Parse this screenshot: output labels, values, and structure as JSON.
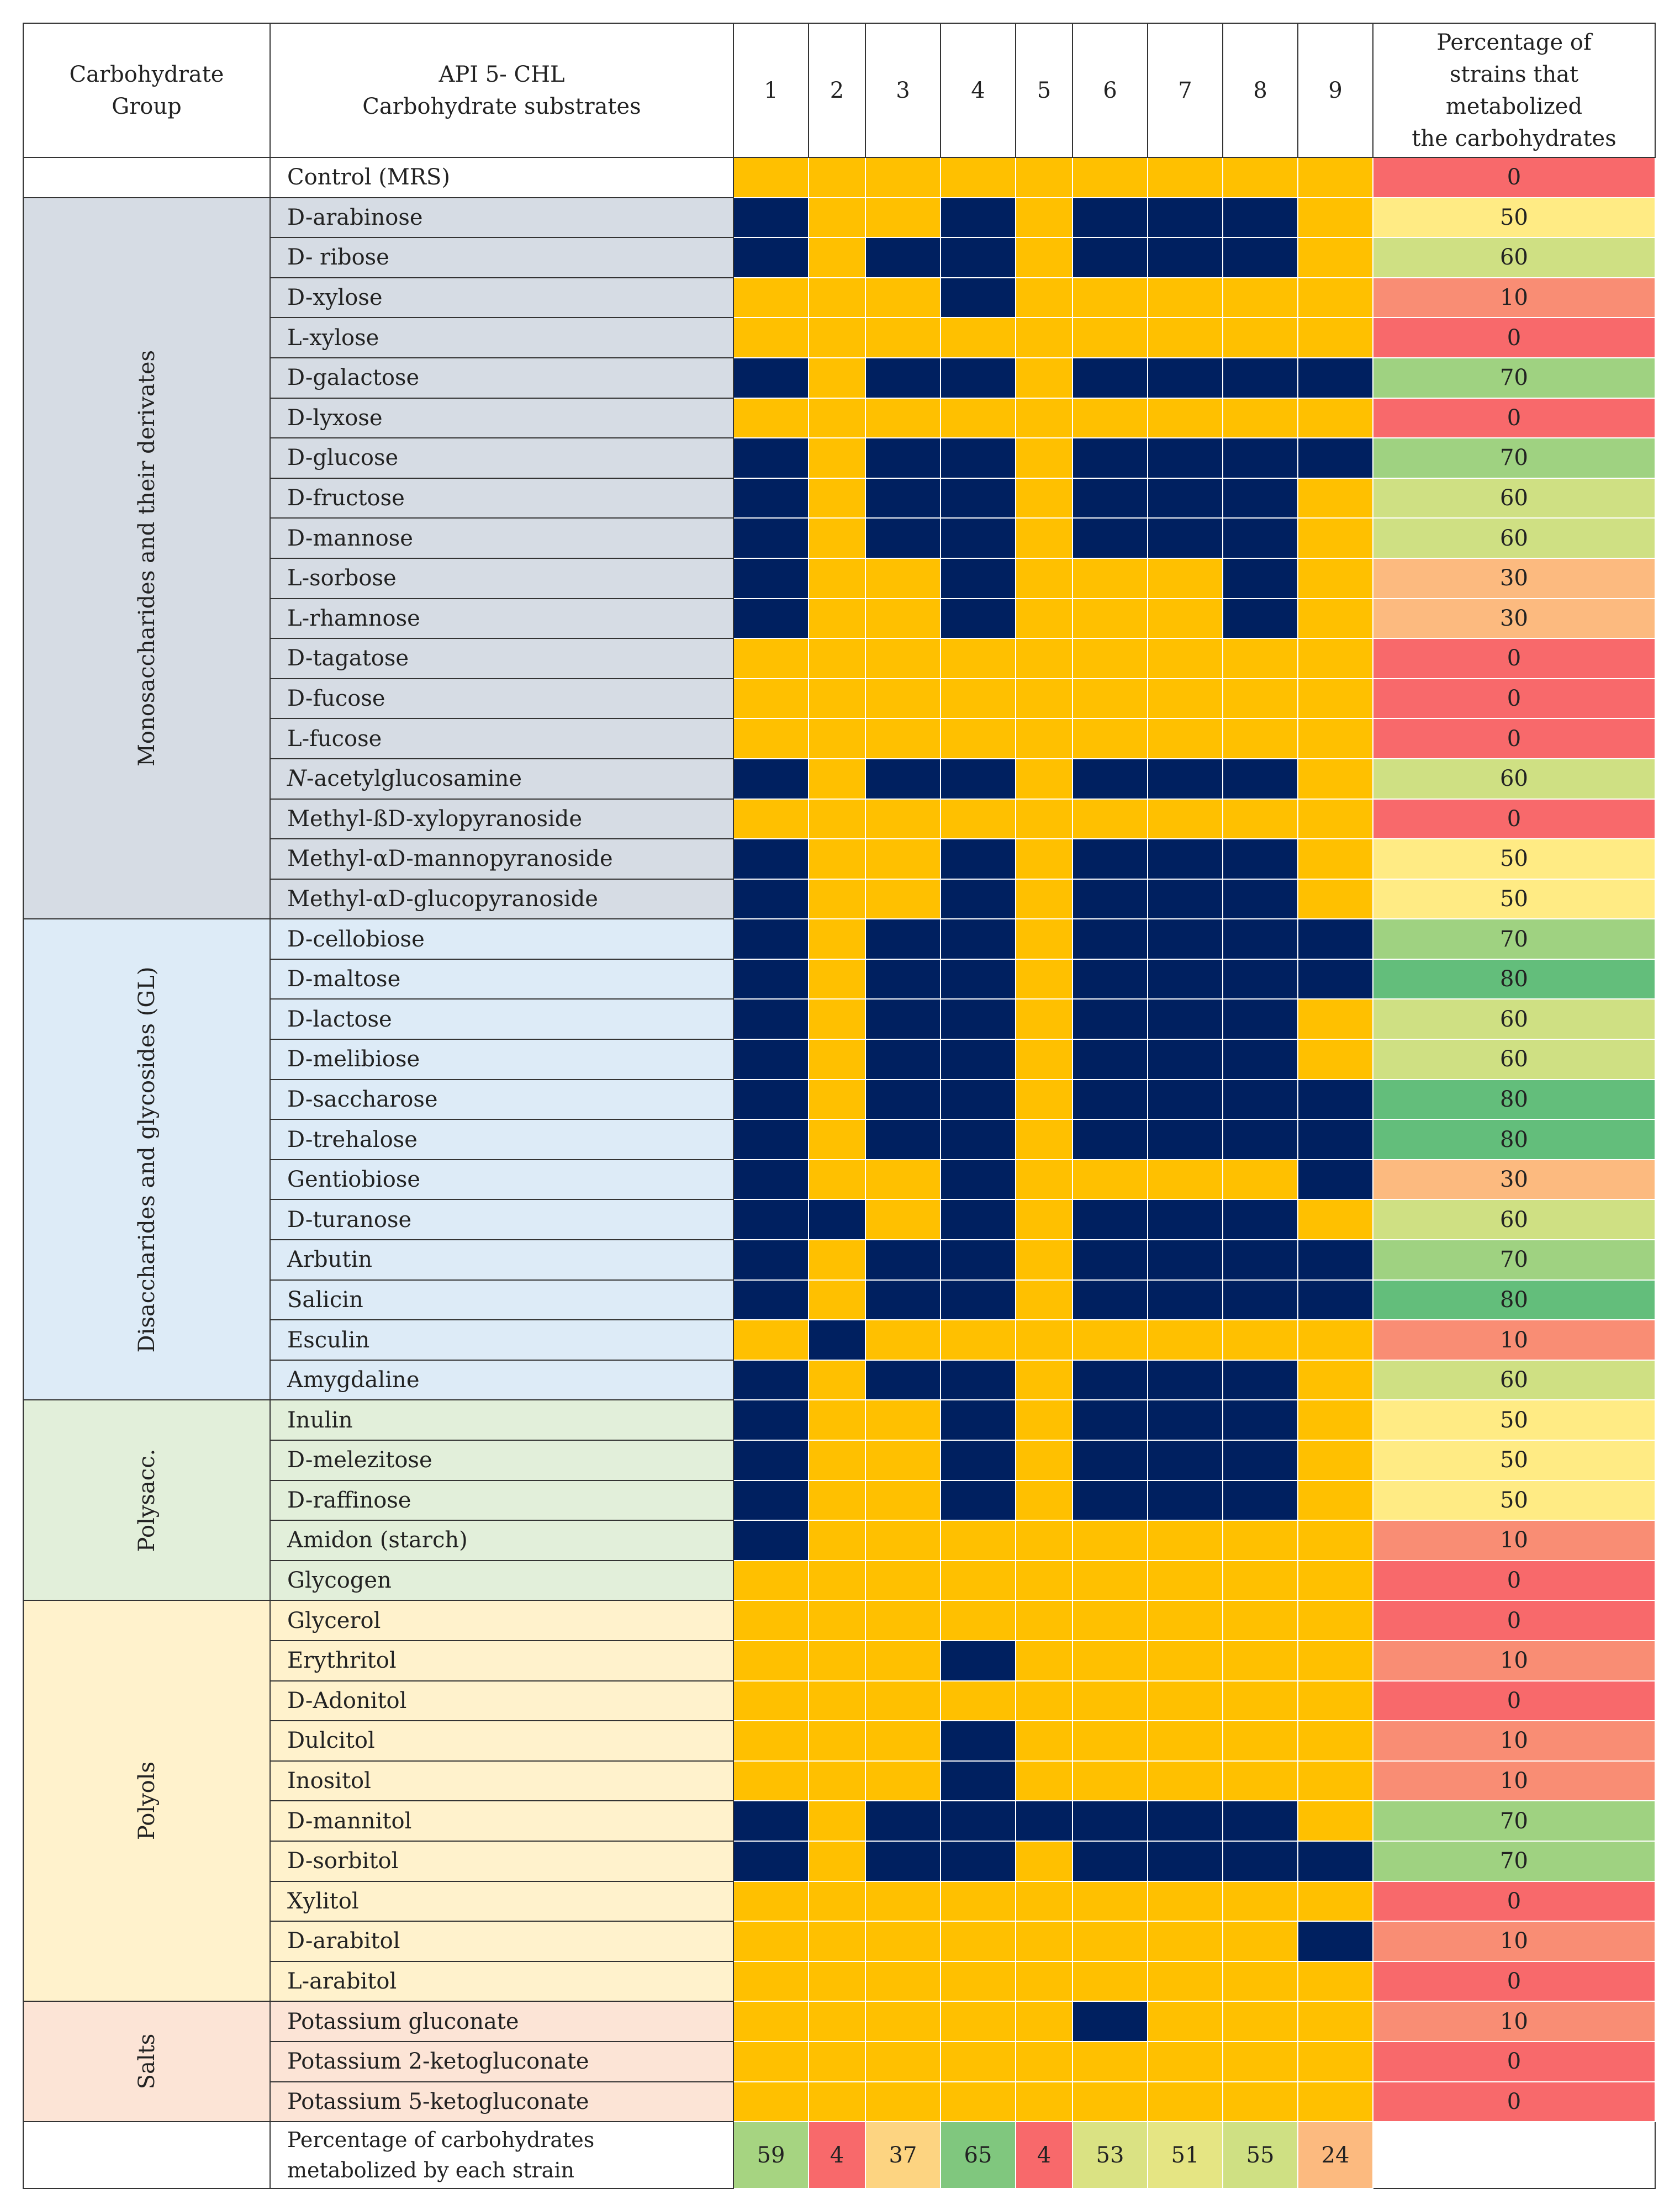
{
  "header": {
    "group_label": "Carbohydrate\nGroup",
    "substrate_label": "API 5- CHL\nCarbohydrate substrates",
    "strains": [
      "1",
      "2",
      "3",
      "4",
      "5",
      "6",
      "7",
      "8",
      "9"
    ],
    "percentage_label": "Percentage of\nstrains that\nmetabolized\nthe carbohydrates"
  },
  "colors": {
    "positive": "#002060",
    "negative": "#FFC000",
    "pct_scale": {
      "0": "#F8696B",
      "10": "#F98D74",
      "30": "#FCBA7F",
      "50": "#FFEB84",
      "60": "#CFE083",
      "70": "#9FD281",
      "80": "#63BE7B",
      "4": "#F8696B",
      "24": "#FCBA7F",
      "37": "#FDD481",
      "51": "#E5E583",
      "53": "#DAE283",
      "55": "#CFE083",
      "59": "#A6D481",
      "65": "#80C77E"
    }
  },
  "groups": [
    {
      "name": "",
      "bg": "#FFFFFF",
      "span": 1
    },
    {
      "name": "Monosaccharides and their derivates",
      "bg": "#D6DCE4",
      "span": 18
    },
    {
      "name": "Disaccharides and glycosides (GL)",
      "bg": "#DDEBF7",
      "span": 12
    },
    {
      "name": "Polysacc.",
      "bg": "#E2EFDA",
      "span": 5
    },
    {
      "name": "Polyols",
      "bg": "#FFF2CC",
      "span": 10
    },
    {
      "name": "Salts",
      "bg": "#FCE4D6",
      "span": 3
    }
  ],
  "rows": [
    {
      "name": "Control (MRS)",
      "strains": [
        0,
        0,
        0,
        0,
        0,
        0,
        0,
        0,
        0
      ],
      "pct": 0
    },
    {
      "name": "D-arabinose",
      "strains": [
        1,
        0,
        0,
        1,
        0,
        1,
        1,
        1,
        0
      ],
      "pct": 50
    },
    {
      "name": "D- ribose",
      "strains": [
        1,
        0,
        1,
        1,
        0,
        1,
        1,
        1,
        0
      ],
      "pct": 60
    },
    {
      "name": "D-xylose",
      "strains": [
        0,
        0,
        0,
        1,
        0,
        0,
        0,
        0,
        0
      ],
      "pct": 10
    },
    {
      "name": "L-xylose",
      "strains": [
        0,
        0,
        0,
        0,
        0,
        0,
        0,
        0,
        0
      ],
      "pct": 0
    },
    {
      "name": "D-galactose",
      "strains": [
        1,
        0,
        1,
        1,
        0,
        1,
        1,
        1,
        1
      ],
      "pct": 70
    },
    {
      "name": "D-lyxose",
      "strains": [
        0,
        0,
        0,
        0,
        0,
        0,
        0,
        0,
        0
      ],
      "pct": 0
    },
    {
      "name": "D-glucose",
      "strains": [
        1,
        0,
        1,
        1,
        0,
        1,
        1,
        1,
        1
      ],
      "pct": 70
    },
    {
      "name": "D-fructose",
      "strains": [
        1,
        0,
        1,
        1,
        0,
        1,
        1,
        1,
        0
      ],
      "pct": 60
    },
    {
      "name": "D-mannose",
      "strains": [
        1,
        0,
        1,
        1,
        0,
        1,
        1,
        1,
        0
      ],
      "pct": 60
    },
    {
      "name": "L-sorbose",
      "strains": [
        1,
        0,
        0,
        1,
        0,
        0,
        0,
        1,
        0
      ],
      "pct": 30
    },
    {
      "name": "L-rhamnose",
      "strains": [
        1,
        0,
        0,
        1,
        0,
        0,
        0,
        1,
        0
      ],
      "pct": 30
    },
    {
      "name": "D-tagatose",
      "strains": [
        0,
        0,
        0,
        0,
        0,
        0,
        0,
        0,
        0
      ],
      "pct": 0
    },
    {
      "name": "D-fucose",
      "strains": [
        0,
        0,
        0,
        0,
        0,
        0,
        0,
        0,
        0
      ],
      "pct": 0
    },
    {
      "name": "L-fucose",
      "strains": [
        0,
        0,
        0,
        0,
        0,
        0,
        0,
        0,
        0
      ],
      "pct": 0
    },
    {
      "name": "N-acetylglucosamine",
      "strains": [
        1,
        0,
        1,
        1,
        0,
        1,
        1,
        1,
        0
      ],
      "pct": 60
    },
    {
      "name": "Methyl-ßD-xylopyranoside",
      "strains": [
        0,
        0,
        0,
        0,
        0,
        0,
        0,
        0,
        0
      ],
      "pct": 0
    },
    {
      "name": "Methyl-αD-mannopyranoside",
      "strains": [
        1,
        0,
        0,
        1,
        0,
        1,
        1,
        1,
        0
      ],
      "pct": 50
    },
    {
      "name": "Methyl-αD-glucopyranoside",
      "strains": [
        1,
        0,
        0,
        1,
        0,
        1,
        1,
        1,
        0
      ],
      "pct": 50
    },
    {
      "name": "D-cellobiose",
      "strains": [
        1,
        0,
        1,
        1,
        0,
        1,
        1,
        1,
        1
      ],
      "pct": 70
    },
    {
      "name": "D-maltose",
      "strains": [
        1,
        0,
        1,
        1,
        0,
        1,
        1,
        1,
        1
      ],
      "pct": 80
    },
    {
      "name": "D-lactose",
      "strains": [
        1,
        0,
        1,
        1,
        0,
        1,
        1,
        1,
        0
      ],
      "pct": 60
    },
    {
      "name": "D-melibiose",
      "strains": [
        1,
        0,
        1,
        1,
        0,
        1,
        1,
        1,
        0
      ],
      "pct": 60
    },
    {
      "name": "D-saccharose",
      "strains": [
        1,
        0,
        1,
        1,
        0,
        1,
        1,
        1,
        1
      ],
      "pct": 80
    },
    {
      "name": "D-trehalose",
      "strains": [
        1,
        0,
        1,
        1,
        0,
        1,
        1,
        1,
        1
      ],
      "pct": 80
    },
    {
      "name": "Gentiobiose",
      "strains": [
        1,
        0,
        0,
        1,
        0,
        0,
        0,
        0,
        1
      ],
      "pct": 30
    },
    {
      "name": "D-turanose",
      "strains": [
        1,
        1,
        0,
        1,
        0,
        1,
        1,
        1,
        0
      ],
      "pct": 60
    },
    {
      "name": "Arbutin",
      "strains": [
        1,
        0,
        1,
        1,
        0,
        1,
        1,
        1,
        1
      ],
      "pct": 70
    },
    {
      "name": "Salicin",
      "strains": [
        1,
        0,
        1,
        1,
        0,
        1,
        1,
        1,
        1
      ],
      "pct": 80
    },
    {
      "name": "Esculin",
      "strains": [
        0,
        1,
        0,
        0,
        0,
        0,
        0,
        0,
        0
      ],
      "pct": 10
    },
    {
      "name": "Amygdaline",
      "strains": [
        1,
        0,
        1,
        1,
        0,
        1,
        1,
        1,
        0
      ],
      "pct": 60
    },
    {
      "name": "Inulin",
      "strains": [
        1,
        0,
        0,
        1,
        0,
        1,
        1,
        1,
        0
      ],
      "pct": 50
    },
    {
      "name": "D-melezitose",
      "strains": [
        1,
        0,
        0,
        1,
        0,
        1,
        1,
        1,
        0
      ],
      "pct": 50
    },
    {
      "name": "D-raffinose",
      "strains": [
        1,
        0,
        0,
        1,
        0,
        1,
        1,
        1,
        0
      ],
      "pct": 50
    },
    {
      "name": "Amidon (starch)",
      "strains": [
        1,
        0,
        0,
        0,
        0,
        0,
        0,
        0,
        0
      ],
      "pct": 10
    },
    {
      "name": "Glycogen",
      "strains": [
        0,
        0,
        0,
        0,
        0,
        0,
        0,
        0,
        0
      ],
      "pct": 0
    },
    {
      "name": "Glycerol",
      "strains": [
        0,
        0,
        0,
        0,
        0,
        0,
        0,
        0,
        0
      ],
      "pct": 0
    },
    {
      "name": "Erythritol",
      "strains": [
        0,
        0,
        0,
        1,
        0,
        0,
        0,
        0,
        0
      ],
      "pct": 10
    },
    {
      "name": "D-Adonitol",
      "strains": [
        0,
        0,
        0,
        0,
        0,
        0,
        0,
        0,
        0
      ],
      "pct": 0
    },
    {
      "name": "Dulcitol",
      "strains": [
        0,
        0,
        0,
        1,
        0,
        0,
        0,
        0,
        0
      ],
      "pct": 10
    },
    {
      "name": "Inositol",
      "strains": [
        0,
        0,
        0,
        1,
        0,
        0,
        0,
        0,
        0
      ],
      "pct": 10
    },
    {
      "name": "D-mannitol",
      "strains": [
        1,
        0,
        1,
        1,
        1,
        1,
        1,
        1,
        0
      ],
      "pct": 70
    },
    {
      "name": "D-sorbitol",
      "strains": [
        1,
        0,
        1,
        1,
        0,
        1,
        1,
        1,
        1
      ],
      "pct": 70
    },
    {
      "name": "Xylitol",
      "strains": [
        0,
        0,
        0,
        0,
        0,
        0,
        0,
        0,
        0
      ],
      "pct": 0
    },
    {
      "name": "D-arabitol",
      "strains": [
        0,
        0,
        0,
        0,
        0,
        0,
        0,
        0,
        1
      ],
      "pct": 10
    },
    {
      "name": "L-arabitol",
      "strains": [
        0,
        0,
        0,
        0,
        0,
        0,
        0,
        0,
        0
      ],
      "pct": 0
    },
    {
      "name": "Potassium gluconate",
      "strains": [
        0,
        0,
        0,
        0,
        0,
        1,
        0,
        0,
        0
      ],
      "pct": 10
    },
    {
      "name": "Potassium 2-ketogluconate",
      "strains": [
        0,
        0,
        0,
        0,
        0,
        0,
        0,
        0,
        0
      ],
      "pct": 0
    },
    {
      "name": "Potassium 5-ketogluconate",
      "strains": [
        0,
        0,
        0,
        0,
        0,
        0,
        0,
        0,
        0
      ],
      "pct": 0
    }
  ],
  "footer": {
    "label": "Percentage of carbohydrates\nmetabolized by each strain",
    "values": [
      59,
      4,
      37,
      65,
      4,
      53,
      51,
      55,
      24
    ]
  }
}
